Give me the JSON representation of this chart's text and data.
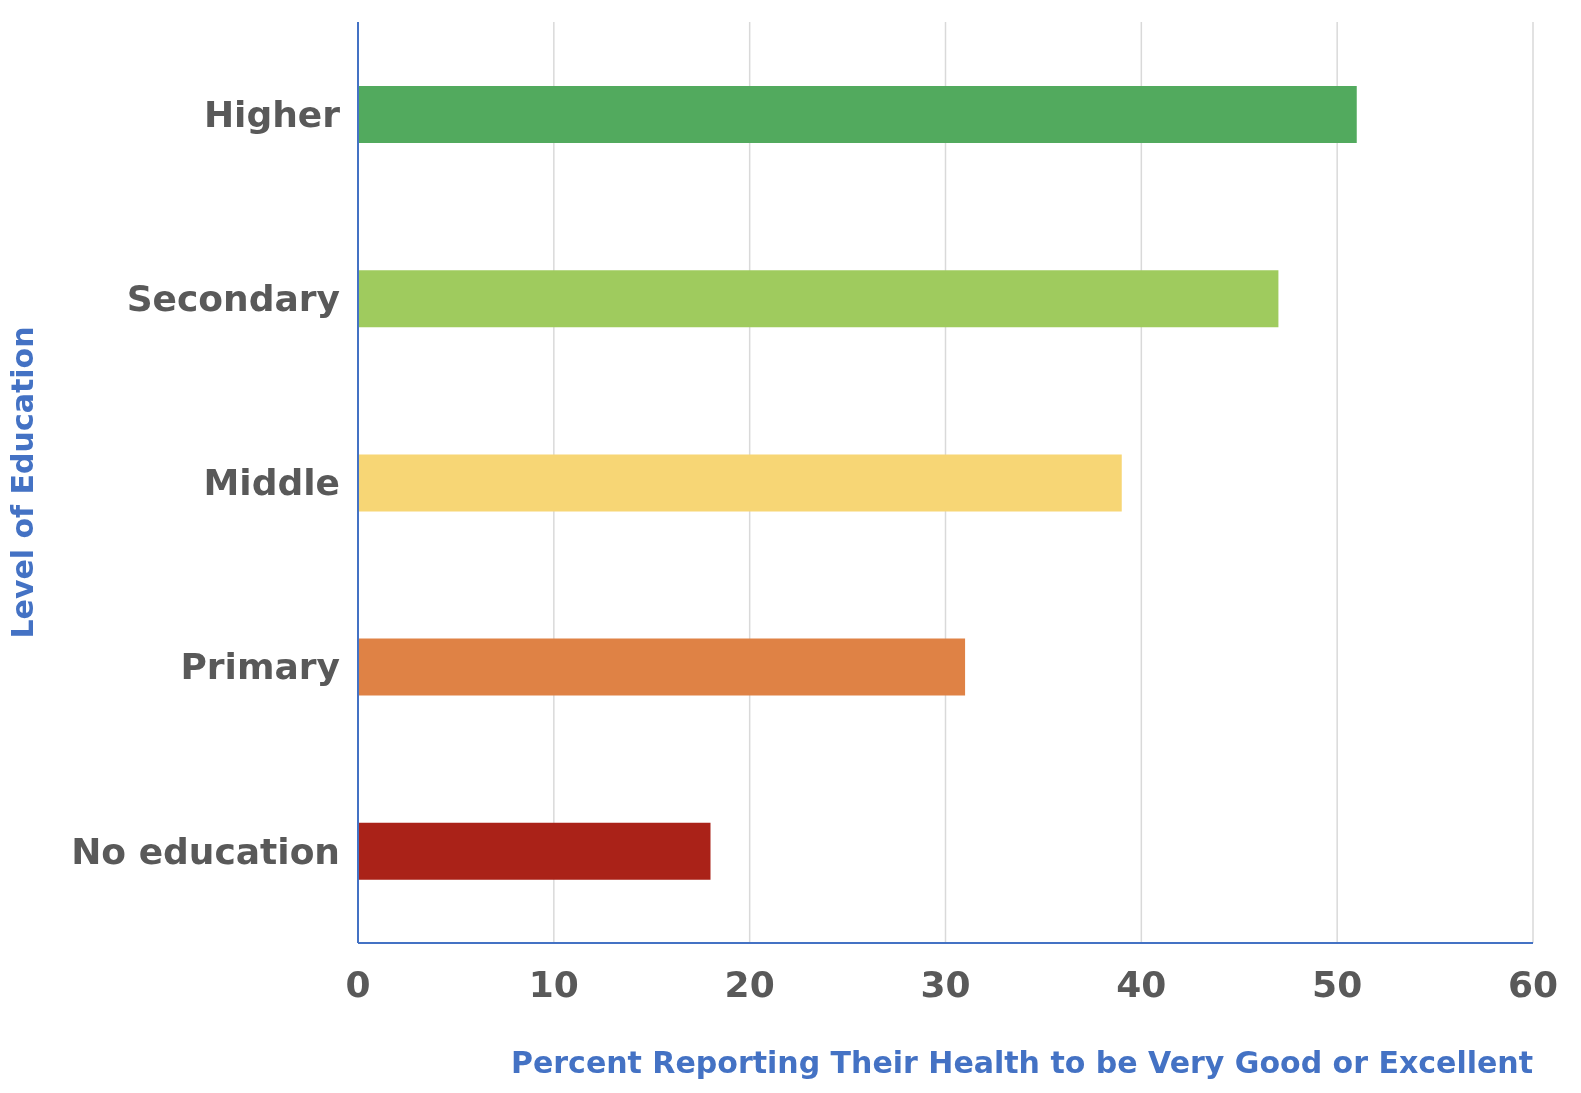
{
  "chart_data": {
    "type": "bar",
    "orientation": "horizontal",
    "xlabel": "Percent Reporting Their Health to be Very Good or Excellent",
    "ylabel": "Level of Education",
    "categories": [
      "Higher",
      "Secondary",
      "Middle",
      "Primary",
      "No education"
    ],
    "values": [
      51,
      47,
      39,
      31,
      18
    ],
    "colors": [
      "#52aa5e",
      "#9fcb5e",
      "#f7d675",
      "#df8245",
      "#aa2218"
    ],
    "xlim": [
      0,
      60
    ],
    "xticks": [
      0,
      10,
      20,
      30,
      40,
      50,
      60
    ],
    "grid": "x"
  }
}
